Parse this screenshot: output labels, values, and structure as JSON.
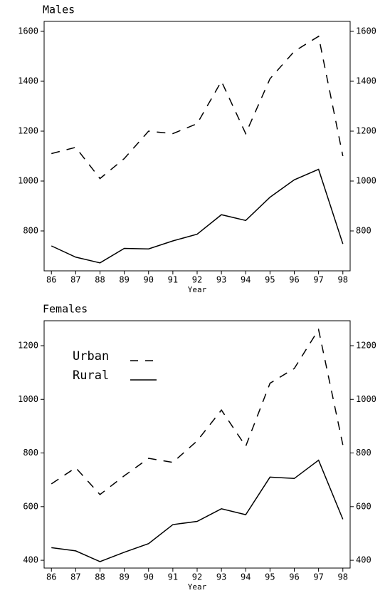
{
  "chart_data": [
    {
      "type": "line",
      "title": "Males",
      "xlabel": "Year",
      "x": [
        86,
        87,
        88,
        89,
        90,
        91,
        92,
        93,
        94,
        95,
        96,
        97,
        98
      ],
      "xlim": [
        85.7,
        98.3
      ],
      "xticks": [
        86,
        87,
        88,
        89,
        90,
        91,
        92,
        93,
        94,
        95,
        96,
        97,
        98
      ],
      "ylim": [
        640,
        1640
      ],
      "yticks": [
        800,
        1000,
        1200,
        1400,
        1600
      ],
      "right_axis": true,
      "legend": false,
      "series": [
        {
          "name": "Urban",
          "color": "#000000",
          "dash": "dashed",
          "values": [
            1110,
            1135,
            1010,
            1090,
            1200,
            1190,
            1230,
            1400,
            1190,
            1410,
            1520,
            1580,
            1100
          ]
        },
        {
          "name": "Rural",
          "color": "#000000",
          "dash": "solid",
          "values": [
            740,
            695,
            672,
            730,
            728,
            760,
            787,
            865,
            842,
            935,
            1005,
            1047,
            748
          ]
        }
      ]
    },
    {
      "type": "line",
      "title": "Females",
      "xlabel": "Year",
      "x": [
        86,
        87,
        88,
        89,
        90,
        91,
        92,
        93,
        94,
        95,
        96,
        97,
        98
      ],
      "xlim": [
        85.7,
        98.3
      ],
      "xticks": [
        86,
        87,
        88,
        89,
        90,
        91,
        92,
        93,
        94,
        95,
        96,
        97,
        98
      ],
      "ylim": [
        371,
        1293
      ],
      "yticks": [
        400,
        600,
        800,
        1000,
        1200
      ],
      "right_axis": true,
      "legend": "upper left",
      "series": [
        {
          "name": "Urban",
          "color": "#000000",
          "dash": "dashed",
          "values": [
            685,
            745,
            645,
            715,
            780,
            765,
            845,
            960,
            825,
            1060,
            1115,
            1260,
            830
          ]
        },
        {
          "name": "Rural",
          "color": "#000000",
          "dash": "solid",
          "values": [
            447,
            435,
            395,
            430,
            462,
            533,
            545,
            592,
            570,
            710,
            705,
            773,
            553
          ]
        }
      ]
    }
  ]
}
